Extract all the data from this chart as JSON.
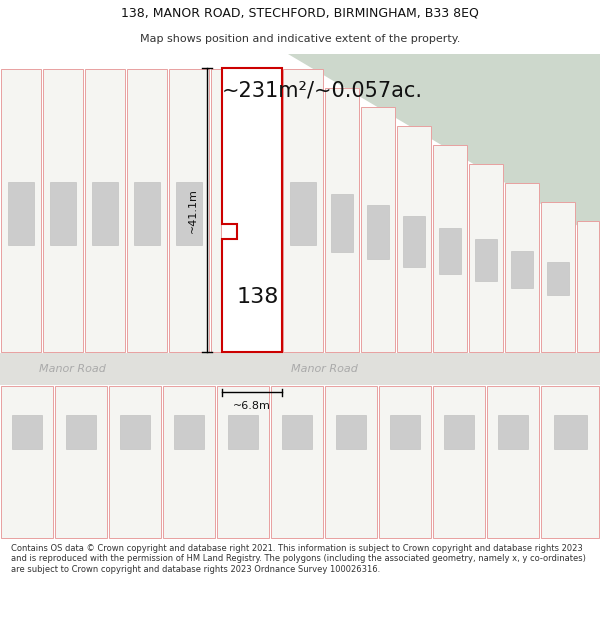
{
  "title_line1": "138, MANOR ROAD, STECHFORD, BIRMINGHAM, B33 8EQ",
  "title_line2": "Map shows position and indicative extent of the property.",
  "area_text": "~231m²/~0.057ac.",
  "length_text": "~41.1m",
  "width_text": "~6.8m",
  "property_label": "138",
  "road_label_left": "Manor Road",
  "road_label_right": "Manor Road",
  "copyright_text": "Contains OS data © Crown copyright and database right 2021. This information is subject to Crown copyright and database rights 2023 and is reproduced with the permission of HM Land Registry. The polygons (including the associated geometry, namely x, y co-ordinates) are subject to Crown copyright and database rights 2023 Ordnance Survey 100026316.",
  "map_bg": "#f0f0ed",
  "road_color": "#e0e0dc",
  "green_color": "#cdd8cc",
  "plot_fill": "#f5f5f2",
  "plot_border": "#e8a0a0",
  "highlight_fill": "#ffffff",
  "highlight_border": "#cc0000",
  "inner_rect_color": "#cccccc",
  "inner_rect_border": "#bbbbbb",
  "dim_color": "#000000",
  "text_color": "#222222",
  "road_text_color": "#aaaaaa",
  "title1_fontsize": 9,
  "title2_fontsize": 8,
  "area_fontsize": 15,
  "label_fontsize": 16,
  "dim_fontsize": 8,
  "road_fontsize": 8,
  "copy_fontsize": 6
}
